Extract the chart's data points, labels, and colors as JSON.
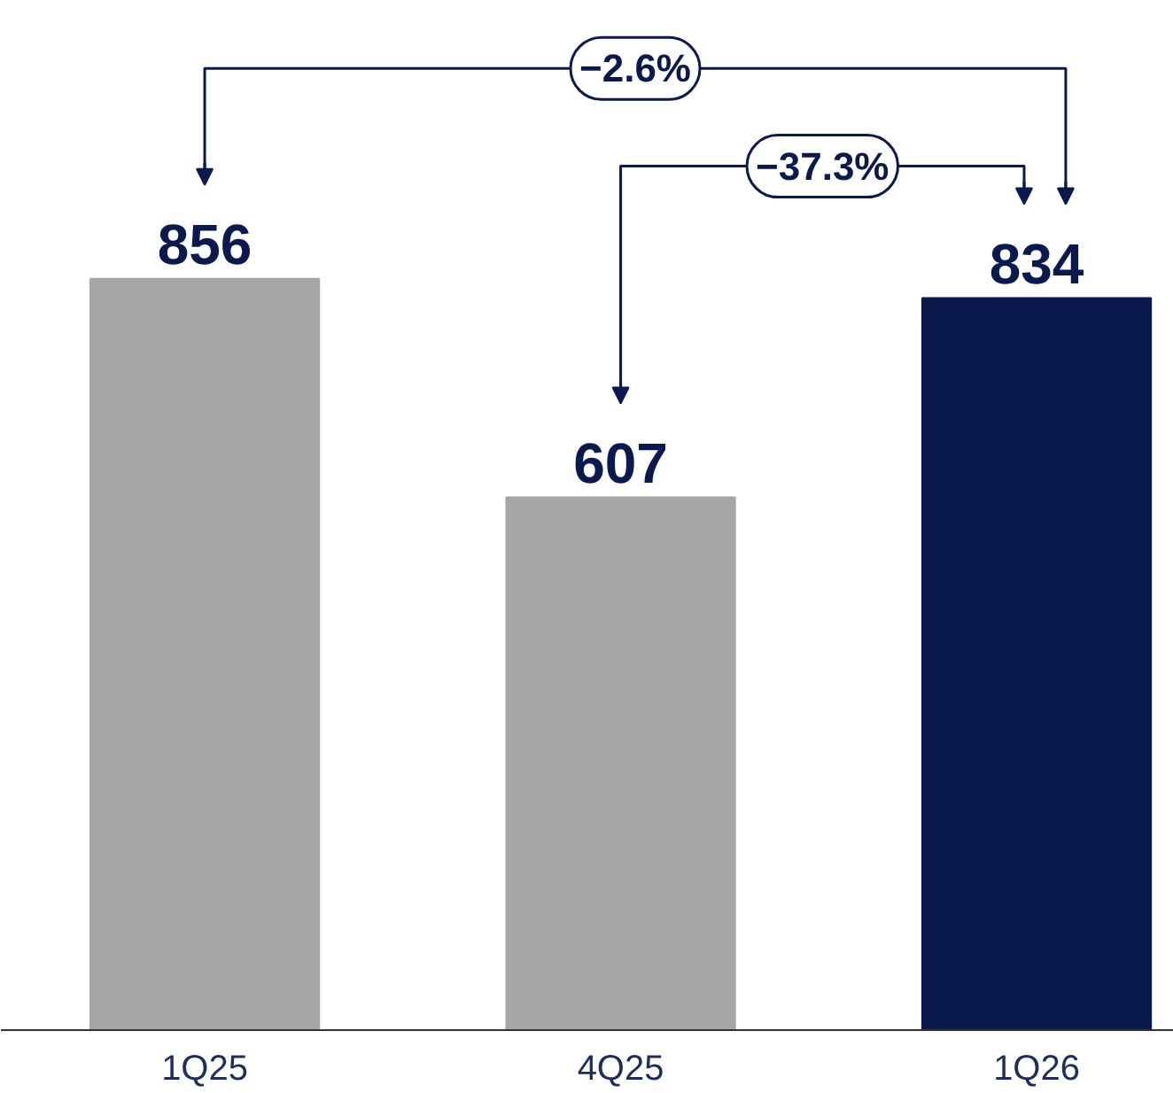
{
  "chart_data": {
    "type": "bar",
    "categories": [
      "1Q25",
      "4Q25",
      "1Q26"
    ],
    "values": [
      856,
      607,
      834
    ],
    "colors": [
      "#a6a6a6",
      "#a6a6a6",
      "#0b1a4e"
    ],
    "data_labels": true,
    "tick_labels": "x",
    "annotations": [
      "−2.6%",
      "−37.3%"
    ]
  }
}
